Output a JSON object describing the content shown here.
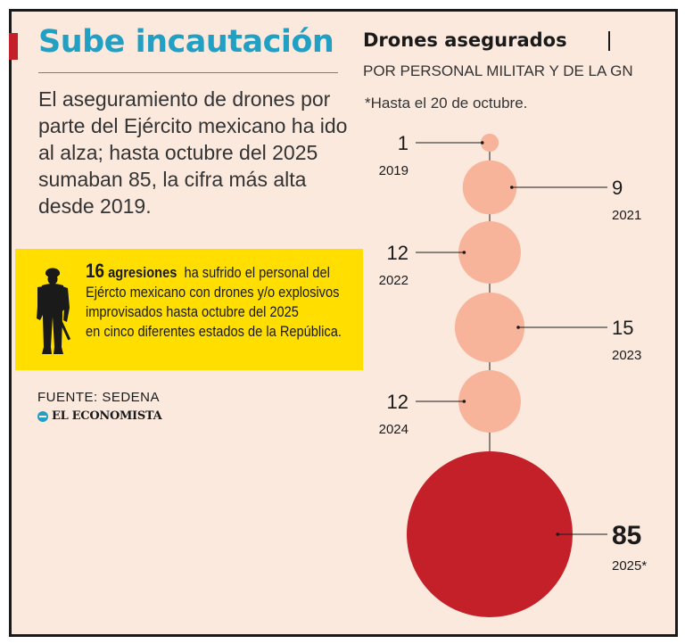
{
  "headline": "Sube incautación",
  "intro": "El aseguramiento de drones por parte del Ejército mexicano ha ido al alza; hasta octubre del 2025 sumaban 85, la cifra más alta desde 2019.",
  "highlight": {
    "number": "16",
    "word": "agresiones",
    "line1_rest": "ha sufrido el personal del",
    "line2": "Ejércto mexicano con drones y/o explosivos",
    "line3": "improvisados hasta octubre del 2025",
    "line4": "en cinco diferentes estados de la República.",
    "icon": "soldier-icon"
  },
  "source": "FUENTE: SEDENA",
  "brand": "EL ECONOMISTA",
  "colors": {
    "background": "#fbe9de",
    "headline": "#22a0c4",
    "highlight": "#ffde00",
    "bubble": "#f7b49a",
    "bubble_max": "#c32029"
  },
  "chart_data": {
    "type": "bubble",
    "title": "Drones asegurados",
    "subtitle": "POR PERSONAL MILITAR Y DE LA GN",
    "note": "*Hasta el 20 de octubre.",
    "categories": [
      "2019",
      "2021",
      "2022",
      "2023",
      "2024",
      "2025*"
    ],
    "values": [
      1,
      9,
      12,
      15,
      12,
      85
    ],
    "label_sides": [
      "left",
      "right",
      "left",
      "right",
      "left",
      "right"
    ],
    "highlighted_index": 5
  }
}
